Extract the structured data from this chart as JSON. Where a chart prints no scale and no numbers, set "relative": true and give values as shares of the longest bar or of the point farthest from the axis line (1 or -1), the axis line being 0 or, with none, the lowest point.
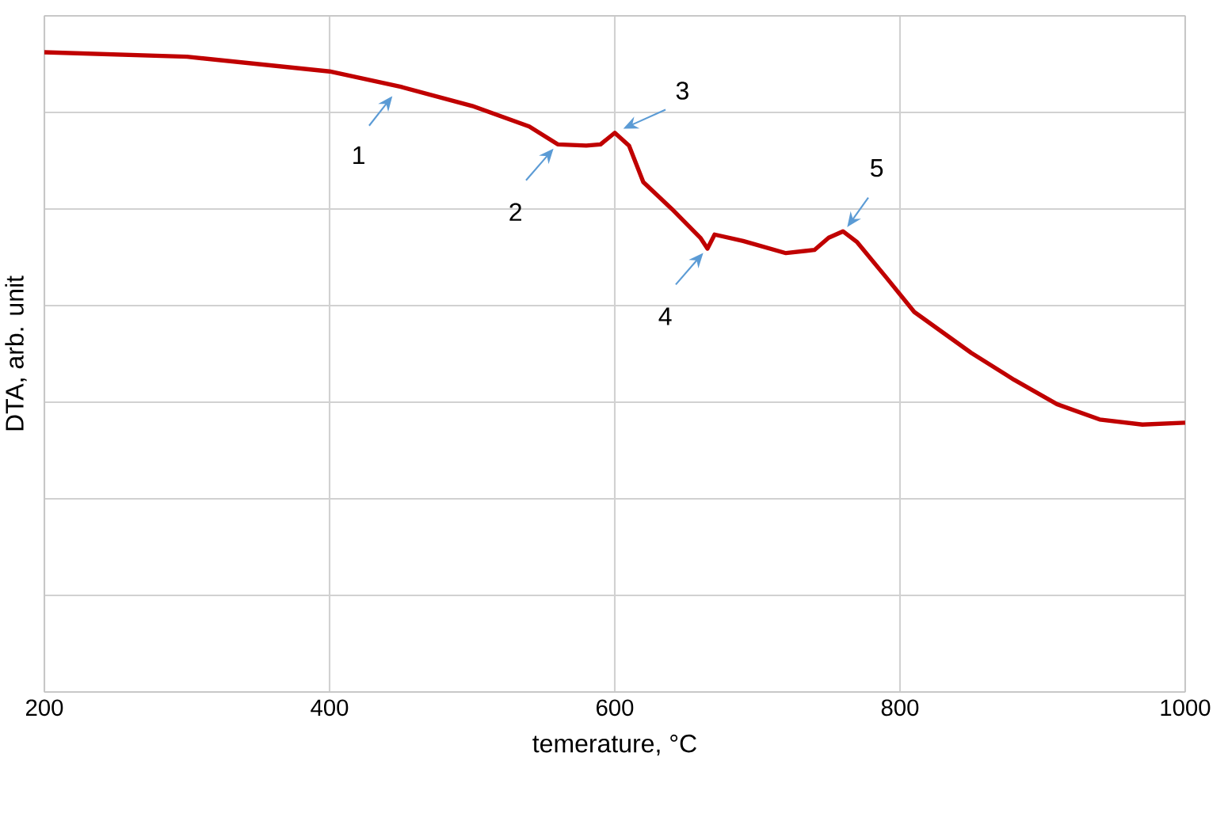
{
  "chart_data": {
    "type": "line",
    "relative": true,
    "xlabel": "temerature, °C",
    "ylabel": "DTA, arb. unit",
    "xlim": [
      200,
      1000
    ],
    "xticks": [
      200,
      400,
      600,
      800,
      1000
    ],
    "grid": true,
    "marker": "none",
    "line_style": "solid",
    "series": [
      {
        "color": "#c00000",
        "x": [
          200,
          300,
          400,
          450,
          500,
          540,
          560,
          580,
          590,
          600,
          610,
          620,
          640,
          660,
          665,
          670,
          690,
          720,
          740,
          750,
          760,
          770,
          790,
          810,
          850,
          880,
          910,
          940,
          970,
          1000
        ],
        "values": [
          1.0,
          0.993,
          0.97,
          0.946,
          0.916,
          0.884,
          0.856,
          0.854,
          0.856,
          0.874,
          0.854,
          0.797,
          0.755,
          0.71,
          0.693,
          0.715,
          0.705,
          0.686,
          0.691,
          0.71,
          0.72,
          0.703,
          0.649,
          0.594,
          0.53,
          0.488,
          0.45,
          0.426,
          0.418,
          0.421
        ]
      }
    ],
    "annotations": [
      {
        "text": "1",
        "x": 447,
        "y": 0.938
      },
      {
        "text": "2",
        "x": 560,
        "y": 0.856
      },
      {
        "text": "3",
        "x": 603,
        "y": 0.874
      },
      {
        "text": "4",
        "x": 665,
        "y": 0.693
      },
      {
        "text": "5",
        "x": 760,
        "y": 0.72
      }
    ]
  }
}
